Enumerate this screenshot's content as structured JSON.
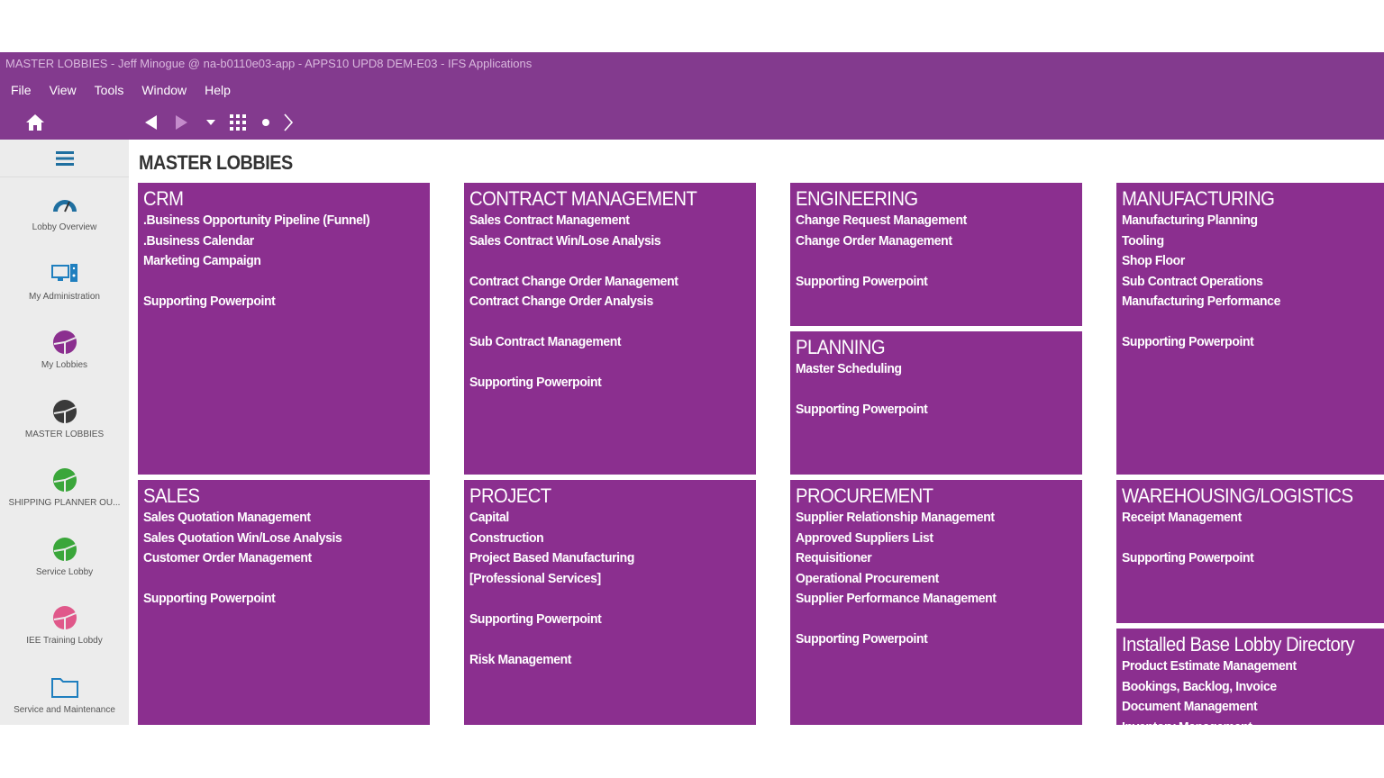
{
  "window": {
    "title": "MASTER LOBBIES - Jeff Minogue @ na-b0110e03-app - APPS10 UPD8 DEM-E03 - IFS Applications"
  },
  "menu": [
    "File",
    "View",
    "Tools",
    "Window",
    "Help"
  ],
  "toolbar": {
    "icons": [
      "home-icon",
      "back-icon",
      "forward-icon",
      "dropdown-icon",
      "grid-icon",
      "dot-icon",
      "chevron-right-icon"
    ]
  },
  "sidebar": {
    "items": [
      {
        "label": "Lobby Overview",
        "icon": "gauge-icon",
        "color": "#1f6fa0"
      },
      {
        "label": "My Administration",
        "icon": "computer-icon",
        "color": "#1f7fbf"
      },
      {
        "label": "My Lobbies",
        "icon": "pie-icon",
        "color": "#8b2f8f"
      },
      {
        "label": "MASTER LOBBIES",
        "icon": "pie-icon",
        "color": "#3a3a3a"
      },
      {
        "label": "SHIPPING PLANNER OU...",
        "icon": "pie-icon",
        "color": "#3aa63a"
      },
      {
        "label": "Service Lobby",
        "icon": "pie-icon",
        "color": "#3aa63a"
      },
      {
        "label": "IEE Training Lobdy",
        "icon": "pie-icon",
        "color": "#e0588a"
      },
      {
        "label": "Service and Maintenance",
        "icon": "folder-icon",
        "color": "#1f7fbf"
      }
    ]
  },
  "page": {
    "title": "MASTER LOBBIES"
  },
  "colors": {
    "header": "#833a8e",
    "tile": "#8b2f8f"
  },
  "tiles": [
    {
      "title": "CRM",
      "items": [
        ".Business Opportunity Pipeline (Funnel)",
        ".Business Calendar",
        "Marketing Campaign",
        "",
        "Supporting Powerpoint"
      ]
    },
    {
      "title": "CONTRACT MANAGEMENT",
      "items": [
        "Sales Contract Management",
        "Sales Contract Win/Lose Analysis",
        "",
        "Contract Change Order Management",
        "Contract Change Order Analysis",
        "",
        "Sub Contract Management",
        "",
        "Supporting Powerpoint"
      ]
    },
    {
      "title": "ENGINEERING",
      "items": [
        "Change Request Management",
        "Change Order Management",
        "",
        "Supporting Powerpoint"
      ]
    },
    {
      "title": "MANUFACTURING",
      "items": [
        "Manufacturing Planning",
        "Tooling",
        "Shop Floor",
        "Sub Contract Operations",
        "Manufacturing Performance",
        "",
        "Supporting Powerpoint"
      ]
    },
    {
      "title": "PLANNING",
      "items": [
        "Master Scheduling",
        "",
        "Supporting Powerpoint"
      ]
    },
    {
      "title": "SALES",
      "items": [
        "Sales Quotation Management",
        "Sales Quotation Win/Lose Analysis",
        "Customer Order Management",
        "",
        "Supporting Powerpoint"
      ]
    },
    {
      "title": "PROJECT",
      "items": [
        "Capital",
        "Construction",
        "Project Based Manufacturing",
        "[Professional Services]",
        "",
        "Supporting Powerpoint",
        "",
        "Risk Management"
      ]
    },
    {
      "title": "PROCUREMENT",
      "items": [
        "Supplier Relationship Management",
        "Approved Suppliers List",
        "Requisitioner",
        "Operational Procurement",
        "Supplier Performance Management",
        "",
        "Supporting Powerpoint"
      ]
    },
    {
      "title": "WAREHOUSING/LOGISTICS",
      "items": [
        "Receipt Management",
        "",
        "Supporting Powerpoint"
      ]
    },
    {
      "title": "Installed Base Lobby Directory",
      "items": [
        "Product Estimate Management",
        "Bookings, Backlog, Invoice",
        "Document Management",
        "Inventory Management"
      ]
    }
  ]
}
